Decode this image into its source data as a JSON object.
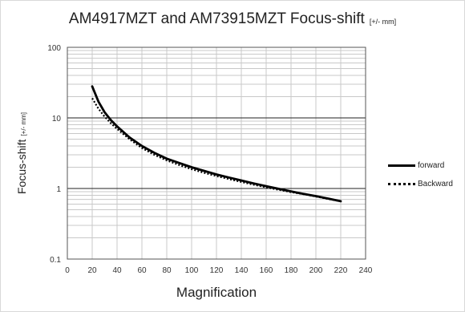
{
  "chart_data": {
    "type": "line",
    "title": "AM4917MZT and AM73915MZT Focus-shift",
    "title_unit": "[+/- mm]",
    "xlabel": "Magnification",
    "ylabel": "Focus-shift",
    "ylabel_unit": "[+/- mm]",
    "xlim": [
      0,
      240
    ],
    "ylim": [
      0.1,
      100
    ],
    "y_scale": "log",
    "x_ticks": [
      "0",
      "20",
      "40",
      "60",
      "80",
      "100",
      "120",
      "140",
      "160",
      "180",
      "200",
      "220",
      "240"
    ],
    "y_ticks": [
      "0.1",
      "1",
      "10",
      "100"
    ],
    "grid": true,
    "legend_position": "right",
    "series": [
      {
        "name": "forward",
        "style": "solid",
        "x": [
          20,
          25,
          30,
          35,
          40,
          50,
          60,
          70,
          80,
          90,
          100,
          110,
          120,
          130,
          140,
          150,
          160,
          170,
          180,
          190,
          200,
          210,
          220
        ],
        "y": [
          28,
          17,
          12,
          9.3,
          7.6,
          5.3,
          4.0,
          3.2,
          2.65,
          2.3,
          2.0,
          1.78,
          1.58,
          1.43,
          1.3,
          1.18,
          1.08,
          0.99,
          0.91,
          0.84,
          0.78,
          0.72,
          0.66
        ]
      },
      {
        "name": "Backward",
        "style": "dotted",
        "x": [
          20,
          25,
          30,
          35,
          40,
          50,
          60,
          70,
          80,
          90,
          100,
          110,
          120,
          130,
          140,
          150,
          160,
          170,
          180,
          190,
          200,
          210,
          220
        ],
        "y": [
          19,
          13.5,
          10.4,
          8.4,
          7.0,
          5.0,
          3.75,
          3.0,
          2.5,
          2.15,
          1.88,
          1.67,
          1.5,
          1.36,
          1.24,
          1.13,
          1.04,
          0.96,
          0.89,
          0.83,
          0.77,
          0.71,
          0.66
        ]
      }
    ]
  }
}
